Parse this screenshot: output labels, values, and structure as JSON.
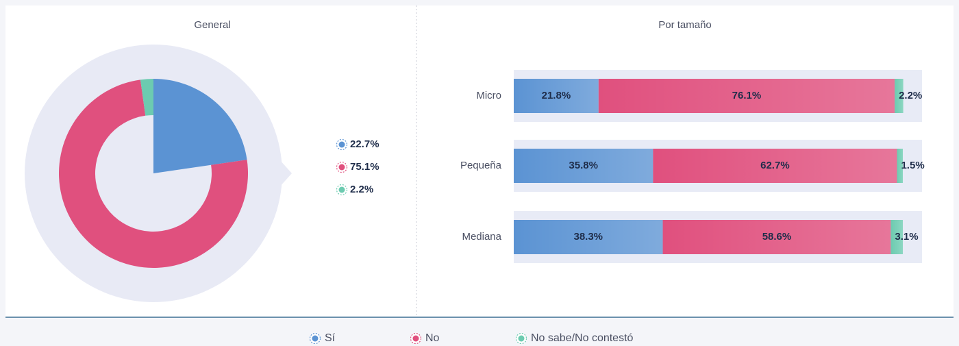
{
  "chart_data": [
    {
      "type": "pie",
      "title": "General",
      "values": [
        22.7,
        75.1,
        2.2
      ],
      "value_labels": [
        "22.7%",
        "75.1%",
        "2.2%"
      ],
      "colors": [
        "#5b93d3",
        "#e0507e",
        "#6ccbb0"
      ]
    },
    {
      "type": "bar",
      "orientation": "horizontal",
      "stacked": true,
      "title": "Por tamaño",
      "categories": [
        "Micro",
        "Pequeña",
        "Mediana"
      ],
      "xlim": [
        0,
        100
      ],
      "series": [
        {
          "name": "Sí",
          "color": "#5b93d3",
          "values": [
            21.8,
            35.8,
            38.3
          ],
          "value_labels": [
            "21.8%",
            "35.8%",
            "38.3%"
          ]
        },
        {
          "name": "No",
          "color": "#e0507e",
          "values": [
            76.1,
            62.7,
            58.6
          ],
          "value_labels": [
            "76.1%",
            "62.7%",
            "58.6%"
          ]
        },
        {
          "name": "No sabe/No contestó",
          "color": "#6ccbb0",
          "values": [
            2.2,
            1.5,
            3.1
          ],
          "value_labels": [
            "2.2%",
            "1.5%",
            "3.1%"
          ]
        }
      ]
    }
  ]
}
